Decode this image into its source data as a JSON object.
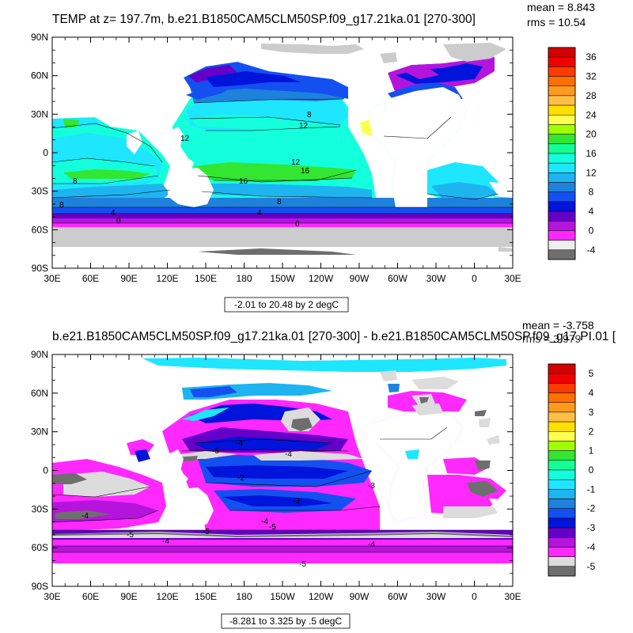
{
  "panels": [
    {
      "title": "TEMP at z= 197.7m, b.e21.B1850CAM5CLM50SP.f09_g17.21ka.01 [270-300]",
      "stats": {
        "mean": "mean = 8.843",
        "rms": "rms = 10.54"
      },
      "lat_labels": [
        "90N",
        "60N",
        "30N",
        "0",
        "30S",
        "60S",
        "90S"
      ],
      "lon_labels": [
        "30E",
        "60E",
        "90E",
        "120E",
        "150E",
        "180",
        "150W",
        "120W",
        "90W",
        "60W",
        "30W",
        "0",
        "30E"
      ],
      "contour_info": "-2.01 to 20.48 by 2 degC",
      "colorbar": {
        "labels": [
          "36",
          "32",
          "28",
          "24",
          "20",
          "16",
          "12",
          "8",
          "4",
          "0",
          "-4"
        ],
        "colors": [
          "#d40000",
          "#f00000",
          "#ff3c00",
          "#ff7000",
          "#ff9a1e",
          "#ffbe46",
          "#ffe000",
          "#ffff50",
          "#a0ff00",
          "#32e632",
          "#14ff96",
          "#14ffdc",
          "#1ee6ff",
          "#1eb4f0",
          "#1e82dc",
          "#1450f0",
          "#0014dc",
          "#6400c8",
          "#b414dc",
          "#ff28ff",
          "#eeeeee",
          "#6e6e6e"
        ]
      },
      "contour_labels": [
        "8",
        "12",
        "12",
        "12",
        "16",
        "16",
        "8",
        "8",
        "8",
        "4",
        "4",
        "0",
        "0"
      ]
    },
    {
      "title": "b.e21.B1850CAM5CLM50SP.f09_g17.21ka.01 [270-300] - b.e21.B1850CAM5CLM50SP.f09_g17.PI.01 [",
      "stats": {
        "mean": "mean = -3.758",
        "rms": "rms = 3.979"
      },
      "lat_labels": [
        "90N",
        "60N",
        "30N",
        "0",
        "30S",
        "60S",
        "90S"
      ],
      "lon_labels": [
        "30E",
        "60E",
        "90E",
        "120E",
        "150E",
        "180",
        "150W",
        "120W",
        "90W",
        "60W",
        "30W",
        "0",
        "30E"
      ],
      "contour_info": "-8.281 to 3.325 by .5 degC",
      "colorbar": {
        "labels": [
          "5",
          "4",
          "3",
          "2",
          "1",
          "0",
          "-1",
          "-2",
          "-3",
          "-4",
          "-5"
        ],
        "colors": [
          "#d40000",
          "#f00000",
          "#ff3c00",
          "#ff7000",
          "#ff9a1e",
          "#ffbe46",
          "#ffe000",
          "#ffff50",
          "#a0ff00",
          "#32e632",
          "#14ff96",
          "#14ffdc",
          "#1ee6ff",
          "#1eb4f0",
          "#1e82dc",
          "#1450f0",
          "#0014dc",
          "#6400c8",
          "#b414dc",
          "#ff28ff",
          "#dcdcdc",
          "#6e6e6e"
        ]
      },
      "contour_labels": [
        "-5",
        "-4",
        "-4",
        "-2",
        "-3",
        "-3",
        "-4",
        "-4",
        "-5",
        "-4",
        "-5",
        "-5",
        "-4",
        "-5"
      ]
    }
  ]
}
